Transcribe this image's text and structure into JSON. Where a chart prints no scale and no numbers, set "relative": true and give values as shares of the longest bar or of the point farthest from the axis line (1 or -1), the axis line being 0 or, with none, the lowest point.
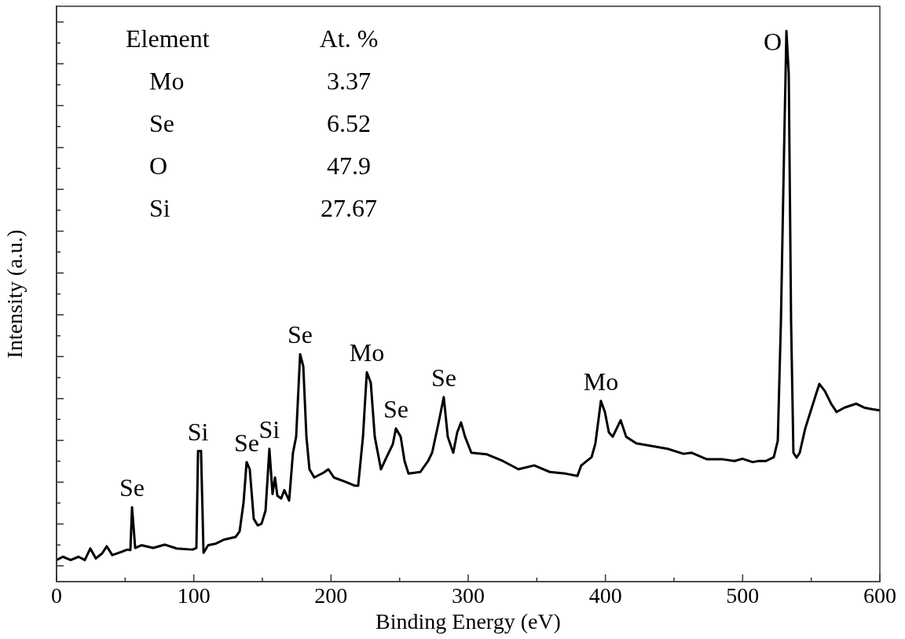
{
  "chart_data": {
    "type": "line",
    "relative": true,
    "xlabel": "Binding Energy (eV)",
    "ylabel": "Intensity (a.u.)",
    "xlim": [
      0,
      600
    ],
    "xticks": [
      0,
      100,
      200,
      300,
      400,
      500,
      600
    ],
    "tick_labels": "x",
    "grid": false,
    "legend": false,
    "marker": "none",
    "line_style": "solid",
    "series": [
      {
        "color": "#000000",
        "x": [
          0,
          4.6,
          10.3,
          16.0,
          20.6,
          24.6,
          28.6,
          33.2,
          36.6,
          40.6,
          47.5,
          51.5,
          53.8,
          55.0,
          57.3,
          61.8,
          70.4,
          79.0,
          87.6,
          99.0,
          101.9,
          103.1,
          105.3,
          107.1,
          110.5,
          116.2,
          121.9,
          130.5,
          133.4,
          136.3,
          138.5,
          140.8,
          143.7,
          146.6,
          149.4,
          152.3,
          155.1,
          157.4,
          159.2,
          160.9,
          163.7,
          166.0,
          169.5,
          172.3,
          174.6,
          177.5,
          179.8,
          182.1,
          184.3,
          187.8,
          194.7,
          198.1,
          202.1,
          210.7,
          217.6,
          219.8,
          223.3,
          226.1,
          229.0,
          231.9,
          236.4,
          240.5,
          245.0,
          247.3,
          250.8,
          253.6,
          256.5,
          265.1,
          270.8,
          273.7,
          278.2,
          282.2,
          285.1,
          289.1,
          292.0,
          294.8,
          297.7,
          302.3,
          313.7,
          325.2,
          336.6,
          348.1,
          359.5,
          371.0,
          379.6,
          382.4,
          389.9,
          392.7,
          396.7,
          399.6,
          402.5,
          405.3,
          408.2,
          411.1,
          415.1,
          422.5,
          434.0,
          445.4,
          456.9,
          462.6,
          474.0,
          485.5,
          494.1,
          499.8,
          507.2,
          511.8,
          517.0,
          522.7,
          525.6,
          527.9,
          530.1,
          531.9,
          533.6,
          535.3,
          537.0,
          539.3,
          541.6,
          545.6,
          551.3,
          555.9,
          559.9,
          564.5,
          568.5,
          574.2,
          582.8,
          588.5,
          594.3,
          600
        ],
        "values": [
          0.039,
          0.045,
          0.039,
          0.045,
          0.039,
          0.06,
          0.042,
          0.051,
          0.064,
          0.048,
          0.054,
          0.058,
          0.057,
          0.135,
          0.061,
          0.066,
          0.061,
          0.067,
          0.06,
          0.058,
          0.061,
          0.237,
          0.237,
          0.052,
          0.066,
          0.069,
          0.076,
          0.081,
          0.091,
          0.144,
          0.217,
          0.204,
          0.114,
          0.102,
          0.105,
          0.129,
          0.241,
          0.159,
          0.189,
          0.156,
          0.151,
          0.166,
          0.147,
          0.234,
          0.263,
          0.413,
          0.391,
          0.263,
          0.204,
          0.189,
          0.198,
          0.204,
          0.189,
          0.181,
          0.174,
          0.174,
          0.263,
          0.38,
          0.361,
          0.263,
          0.204,
          0.226,
          0.249,
          0.278,
          0.263,
          0.219,
          0.196,
          0.199,
          0.219,
          0.234,
          0.286,
          0.335,
          0.263,
          0.234,
          0.271,
          0.289,
          0.263,
          0.234,
          0.231,
          0.219,
          0.204,
          0.211,
          0.199,
          0.196,
          0.192,
          0.211,
          0.226,
          0.251,
          0.328,
          0.308,
          0.271,
          0.263,
          0.278,
          0.293,
          0.263,
          0.251,
          0.246,
          0.241,
          0.232,
          0.234,
          0.222,
          0.222,
          0.219,
          0.223,
          0.217,
          0.219,
          0.219,
          0.226,
          0.256,
          0.473,
          0.772,
          1,
          0.922,
          0.473,
          0.234,
          0.225,
          0.234,
          0.278,
          0.323,
          0.359,
          0.346,
          0.323,
          0.308,
          0.316,
          0.323,
          0.316,
          0.313,
          0.311
        ]
      }
    ],
    "annotations": [
      "Element",
      "At. %",
      "Mo",
      "3.37",
      "Se",
      "6.52",
      "O",
      "47.9",
      "Si",
      "27.67",
      {
        "text": "Se",
        "x": 55.0,
        "y": 0.135
      },
      {
        "text": "Si",
        "x": 103.1,
        "y": 0.237
      },
      {
        "text": "Se",
        "x": 138.5,
        "y": 0.217
      },
      {
        "text": "Si",
        "x": 155.1,
        "y": 0.241
      },
      {
        "text": "Se",
        "x": 177.5,
        "y": 0.413
      },
      {
        "text": "Mo",
        "x": 226.1,
        "y": 0.38
      },
      {
        "text": "Se",
        "x": 247.3,
        "y": 0.278
      },
      {
        "text": "Se",
        "x": 282.2,
        "y": 0.335
      },
      {
        "text": "Mo",
        "x": 396.7,
        "y": 0.328
      },
      {
        "text": "O",
        "x": 531.9,
        "y": 1
      }
    ]
  }
}
